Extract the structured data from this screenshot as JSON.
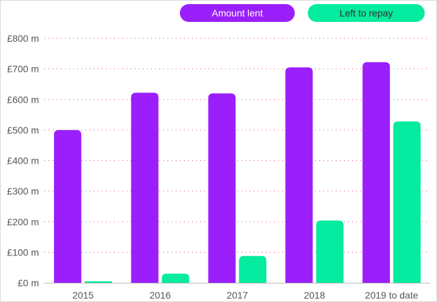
{
  "legend": {
    "lent_label": "Amount lent",
    "repay_label": "Left to repay"
  },
  "colors": {
    "lent": "#9b1ffa",
    "repay": "#05eb9f",
    "gridline": "#e34a6b",
    "axis": "#bbbbbb"
  },
  "chart_data": {
    "type": "bar",
    "categories": [
      "2015",
      "2016",
      "2017",
      "2018",
      "2019 to date"
    ],
    "series": [
      {
        "name": "Amount lent",
        "values": [
          500,
          622,
          620,
          705,
          722
        ]
      },
      {
        "name": "Left to repay",
        "values": [
          5,
          30,
          88,
          204,
          528
        ]
      }
    ],
    "y_tick_labels": [
      "£0 m",
      "£100 m",
      "£200 m",
      "£300 m",
      "£400 m",
      "£500 m",
      "£600 m",
      "£700 m",
      "£800 m"
    ],
    "y_ticks": [
      0,
      100,
      200,
      300,
      400,
      500,
      600,
      700,
      800
    ],
    "ylim": [
      0,
      800
    ],
    "title": "",
    "xlabel": "",
    "ylabel": "",
    "grid": true,
    "legend_position": "top-right"
  }
}
